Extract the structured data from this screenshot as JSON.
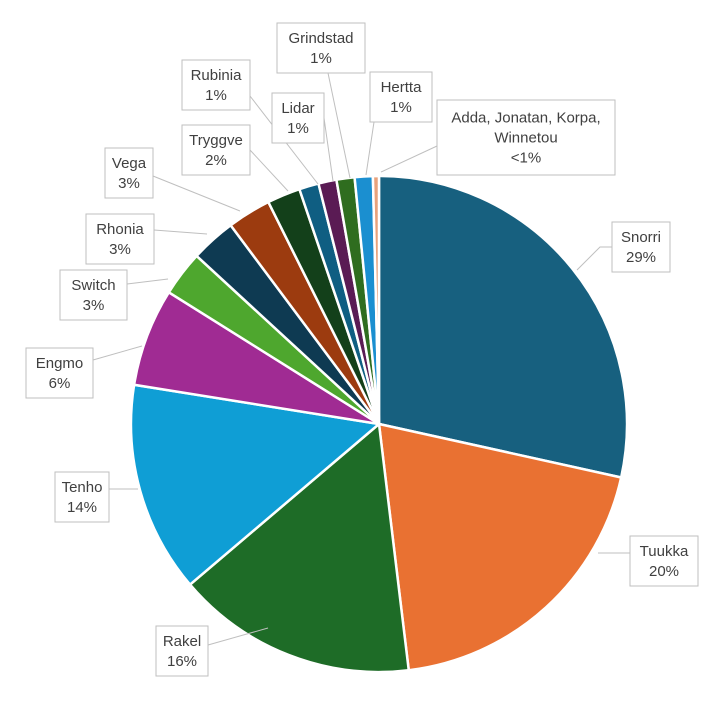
{
  "chart_data": {
    "type": "pie",
    "title": "",
    "slices": [
      {
        "label": "Snorri",
        "pct_label": "29%",
        "value": 29,
        "color": "#17607f"
      },
      {
        "label": "Tuukka",
        "pct_label": "20%",
        "value": 20,
        "color": "#e97132"
      },
      {
        "label": "Rakel",
        "pct_label": "16%",
        "value": 16,
        "color": "#1e6c27"
      },
      {
        "label": "Tenho",
        "pct_label": "14%",
        "value": 14,
        "color": "#0f9ed5"
      },
      {
        "label": "Engmo",
        "pct_label": "6%",
        "value": 6.5,
        "color": "#a02b93"
      },
      {
        "label": "Switch",
        "pct_label": "3%",
        "value": 3,
        "color": "#4ea72e"
      },
      {
        "label": "Rhonia",
        "pct_label": "3%",
        "value": 3,
        "color": "#0e3a52"
      },
      {
        "label": "Vega",
        "pct_label": "3%",
        "value": 2.9,
        "color": "#9c3b0f"
      },
      {
        "label": "Tryggve",
        "pct_label": "2%",
        "value": 2.2,
        "color": "#13401a"
      },
      {
        "label": "Rubinia",
        "pct_label": "1%",
        "value": 1.3,
        "color": "#0f5e82"
      },
      {
        "label": "Lidar",
        "pct_label": "1%",
        "value": 1.2,
        "color": "#5a1b54"
      },
      {
        "label": "Grindstad",
        "pct_label": "1%",
        "value": 1.2,
        "color": "#2f6d1f"
      },
      {
        "label": "Hertta",
        "pct_label": "1%",
        "value": 1.2,
        "color": "#1b8fd0"
      },
      {
        "label": "Adda, Jonatan, Korpa, Winnetou",
        "pct_label": "<1%",
        "value": 0.4,
        "color": "#e8a27c"
      }
    ]
  }
}
